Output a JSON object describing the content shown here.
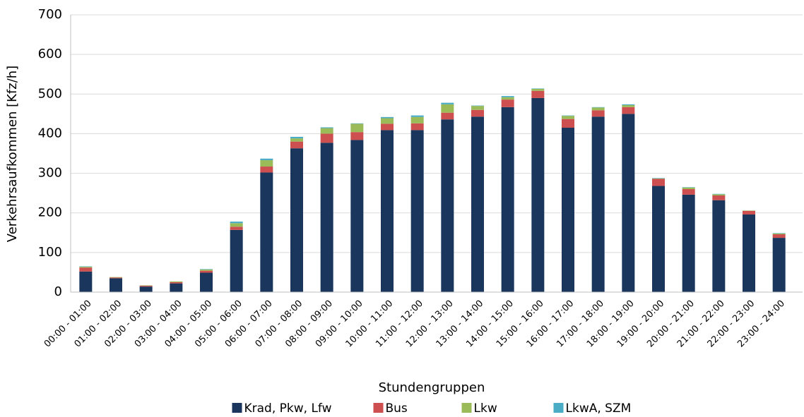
{
  "chart_data": {
    "type": "stacked_bar",
    "categories": [
      "00:00 - 01:00",
      "01:00 - 02:00",
      "02:00 - 03:00",
      "03:00 - 04:00",
      "04:00 - 05:00",
      "05:00 - 06:00",
      "06:00 - 07:00",
      "07:00 - 08:00",
      "08:00 - 09:00",
      "09:00 - 10:00",
      "10:00 - 11:00",
      "11:00 - 12:00",
      "12:00 - 13:00",
      "13:00 - 14:00",
      "14:00 - 15:00",
      "15:00 - 16:00",
      "16:00 - 17:00",
      "17:00 - 18:00",
      "18:00 - 19:00",
      "19:00 - 20:00",
      "20:00 - 21:00",
      "21:00 - 22:00",
      "22:00 - 23:00",
      "23:00 - 24:00"
    ],
    "series": [
      {
        "name": "Krad, Pkw, Lfw",
        "color": "#1b365d",
        "values": [
          52,
          35,
          14,
          22,
          49,
          157,
          302,
          363,
          377,
          384,
          409,
          409,
          436,
          443,
          467,
          490,
          415,
          443,
          450,
          268,
          246,
          232,
          196,
          137
        ]
      },
      {
        "name": "Bus",
        "color": "#cd4f4f",
        "values": [
          10,
          2,
          2,
          3,
          5,
          8,
          15,
          17,
          23,
          20,
          16,
          17,
          17,
          17,
          19,
          18,
          22,
          16,
          17,
          18,
          14,
          12,
          9,
          9
        ]
      },
      {
        "name": "Lkw",
        "color": "#9bbb59",
        "values": [
          2,
          1,
          1,
          2,
          3,
          9,
          16,
          8,
          14,
          21,
          14,
          16,
          21,
          10,
          6,
          5,
          8,
          7,
          5,
          1,
          4,
          3,
          1,
          2
        ]
      },
      {
        "name": "LkwA, SZM",
        "color": "#4bacc6",
        "values": [
          1,
          0,
          0,
          0,
          1,
          4,
          4,
          4,
          2,
          1,
          3,
          4,
          4,
          1,
          3,
          1,
          1,
          1,
          2,
          1,
          1,
          1,
          0,
          1
        ]
      }
    ],
    "y_label": "Verkehrsaufkommen [Kfz/h]",
    "x_label": "Stundengruppen",
    "ylim": [
      0,
      700
    ],
    "yticks": [
      0,
      100,
      200,
      300,
      400,
      500,
      600,
      700
    ],
    "grid": true,
    "legend": "bottom"
  }
}
